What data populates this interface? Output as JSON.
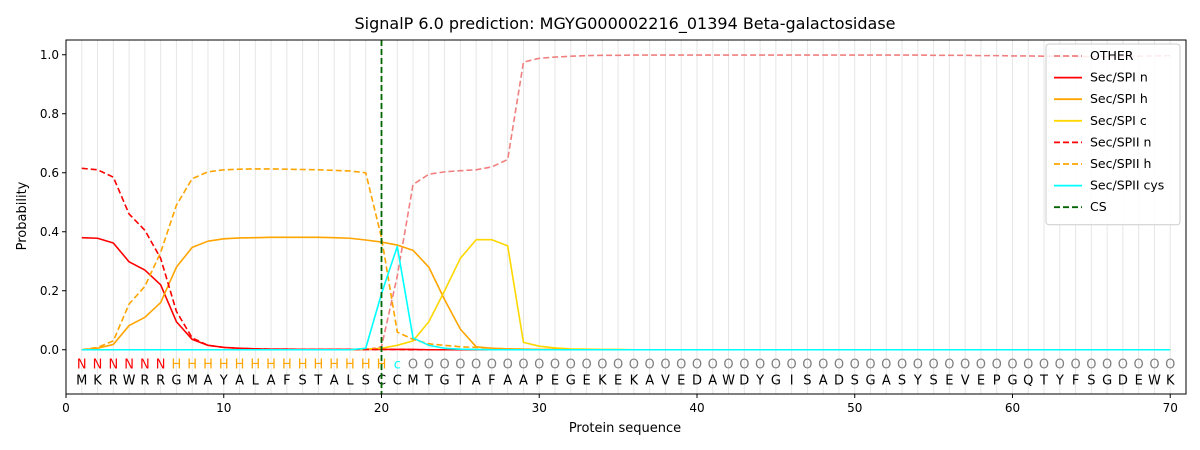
{
  "chart_data": {
    "type": "line",
    "title": "SignalP 6.0 prediction: MGYG000002216_01394 Beta-galactosidase",
    "xlabel": "Protein sequence",
    "ylabel": "Probability",
    "xlim": [
      0,
      71
    ],
    "ylim": [
      -0.15,
      1.05
    ],
    "x_ticks": [
      0,
      10,
      20,
      30,
      40,
      50,
      60,
      70
    ],
    "y_ticks": [
      0.0,
      0.2,
      0.4,
      0.6,
      0.8,
      1.0
    ],
    "x_tick_labels": [
      "0",
      "10",
      "20",
      "30",
      "40",
      "50",
      "60",
      "70"
    ],
    "y_tick_labels": [
      "0.0",
      "0.2",
      "0.4",
      "0.6",
      "0.8",
      "1.0"
    ],
    "grid": "vertical lines at each residue",
    "legend_position": "top-right",
    "sequence": "MKRWRRGMAYALAFSTALSCCMTGTAFAAPEGEKEKAVEDAWDYGISADSGASYSEVEPGQTYFSGDEWK",
    "region_labels": "NNNNNNHHHHHHHHHHHHHHcOOOOOOOOOOOOOOOOOOOOOOOOOOOOOOOOOOOOOOOOOOOOOOOOOO",
    "region_colors": {
      "N": "#ff0000",
      "H": "#ffa500",
      "c": "#00ffff",
      "O": "#808080"
    },
    "series": [
      {
        "name": "OTHER",
        "color": "#f08080",
        "dash": true,
        "values": [
          0.0,
          0.0,
          0.0,
          0.0,
          0.0,
          0.0,
          0.0,
          0.0,
          0.0,
          0.0,
          0.0,
          0.0,
          0.0,
          0.0,
          0.0,
          0.0,
          0.0,
          0.0,
          0.0,
          0.01,
          0.25,
          0.56,
          0.595,
          0.603,
          0.607,
          0.61,
          0.62,
          0.645,
          0.975,
          0.988,
          0.992,
          0.995,
          0.997,
          0.998,
          0.998,
          0.999,
          0.999,
          0.999,
          0.999,
          0.999,
          0.999,
          0.999,
          0.999,
          0.999,
          0.999,
          0.999,
          0.999,
          0.999,
          0.999,
          0.999,
          0.999,
          0.999,
          0.999,
          0.999,
          0.998,
          0.998,
          0.998,
          0.997,
          0.997,
          0.996,
          0.996,
          0.995,
          0.995,
          0.994,
          0.994,
          0.994,
          0.995,
          0.995,
          0.996,
          0.997
        ]
      },
      {
        "name": "Sec/SPI n",
        "color": "#ff0000",
        "dash": false,
        "values": [
          0.38,
          0.378,
          0.362,
          0.298,
          0.27,
          0.22,
          0.095,
          0.035,
          0.015,
          0.008,
          0.005,
          0.003,
          0.002,
          0.002,
          0.001,
          0.001,
          0.001,
          0.001,
          0.001,
          0.001,
          0.001,
          0.001,
          0.0,
          0.0,
          0.0,
          0.0,
          0.0,
          0.0,
          0.0,
          0.0,
          0.0,
          0.0,
          0.0,
          0.0,
          0.0,
          0.0,
          0.0,
          0.0,
          0.0,
          0.0,
          0.0,
          0.0,
          0.0,
          0.0,
          0.0,
          0.0,
          0.0,
          0.0,
          0.0,
          0.0,
          0.0,
          0.0,
          0.0,
          0.0,
          0.0,
          0.0,
          0.0,
          0.0,
          0.0,
          0.0,
          0.0,
          0.0,
          0.0,
          0.0,
          0.0,
          0.0,
          0.0,
          0.0,
          0.0,
          0.0
        ]
      },
      {
        "name": "Sec/SPI h",
        "color": "#ffa500",
        "dash": false,
        "values": [
          0.0,
          0.005,
          0.018,
          0.082,
          0.11,
          0.16,
          0.28,
          0.347,
          0.368,
          0.376,
          0.379,
          0.38,
          0.381,
          0.381,
          0.381,
          0.381,
          0.38,
          0.378,
          0.372,
          0.365,
          0.355,
          0.337,
          0.28,
          0.17,
          0.07,
          0.01,
          0.005,
          0.003,
          0.002,
          0.001,
          0.001,
          0.0,
          0.0,
          0.0,
          0.0,
          0.0,
          0.0,
          0.0,
          0.0,
          0.0,
          0.0,
          0.0,
          0.0,
          0.0,
          0.0,
          0.0,
          0.0,
          0.0,
          0.0,
          0.0,
          0.0,
          0.0,
          0.0,
          0.0,
          0.0,
          0.0,
          0.0,
          0.0,
          0.0,
          0.0,
          0.0,
          0.0,
          0.0,
          0.0,
          0.0,
          0.0,
          0.0,
          0.0,
          0.0,
          0.0
        ]
      },
      {
        "name": "Sec/SPI c",
        "color": "#ffd700",
        "dash": false,
        "values": [
          0.0,
          0.0,
          0.0,
          0.0,
          0.0,
          0.0,
          0.0,
          0.0,
          0.0,
          0.0,
          0.0,
          0.0,
          0.0,
          0.0,
          0.0,
          0.0,
          0.0,
          0.0,
          0.002,
          0.005,
          0.015,
          0.03,
          0.095,
          0.2,
          0.31,
          0.373,
          0.373,
          0.352,
          0.025,
          0.012,
          0.006,
          0.003,
          0.002,
          0.001,
          0.001,
          0.0,
          0.0,
          0.0,
          0.0,
          0.0,
          0.0,
          0.0,
          0.0,
          0.0,
          0.0,
          0.0,
          0.0,
          0.0,
          0.0,
          0.0,
          0.0,
          0.0,
          0.0,
          0.0,
          0.0,
          0.0,
          0.0,
          0.0,
          0.0,
          0.0,
          0.0,
          0.0,
          0.0,
          0.0,
          0.0,
          0.0,
          0.0,
          0.0,
          0.0,
          0.0
        ]
      },
      {
        "name": "Sec/SPII n",
        "color": "#ff0000",
        "dash": true,
        "values": [
          0.615,
          0.61,
          0.585,
          0.46,
          0.405,
          0.31,
          0.13,
          0.04,
          0.015,
          0.008,
          0.005,
          0.003,
          0.002,
          0.002,
          0.001,
          0.001,
          0.001,
          0.001,
          0.001,
          0.001,
          0.001,
          0.0,
          0.0,
          0.0,
          0.0,
          0.0,
          0.0,
          0.0,
          0.0,
          0.0,
          0.0,
          0.0,
          0.0,
          0.0,
          0.0,
          0.0,
          0.0,
          0.0,
          0.0,
          0.0,
          0.0,
          0.0,
          0.0,
          0.0,
          0.0,
          0.0,
          0.0,
          0.0,
          0.0,
          0.0,
          0.0,
          0.0,
          0.0,
          0.0,
          0.0,
          0.0,
          0.0,
          0.0,
          0.0,
          0.0,
          0.0,
          0.0,
          0.0,
          0.0,
          0.0,
          0.0,
          0.0,
          0.0,
          0.0,
          0.0
        ]
      },
      {
        "name": "Sec/SPII h",
        "color": "#ffa500",
        "dash": true,
        "values": [
          0.0,
          0.008,
          0.03,
          0.155,
          0.215,
          0.33,
          0.49,
          0.58,
          0.603,
          0.61,
          0.612,
          0.613,
          0.613,
          0.612,
          0.611,
          0.61,
          0.608,
          0.606,
          0.6,
          0.38,
          0.06,
          0.035,
          0.02,
          0.015,
          0.01,
          0.008,
          0.005,
          0.003,
          0.002,
          0.001,
          0.001,
          0.0,
          0.0,
          0.0,
          0.0,
          0.0,
          0.0,
          0.0,
          0.0,
          0.0,
          0.0,
          0.0,
          0.0,
          0.0,
          0.0,
          0.0,
          0.0,
          0.0,
          0.0,
          0.0,
          0.0,
          0.0,
          0.0,
          0.0,
          0.0,
          0.0,
          0.0,
          0.0,
          0.0,
          0.0,
          0.0,
          0.0,
          0.0,
          0.0,
          0.0,
          0.0,
          0.0,
          0.0,
          0.0,
          0.0
        ]
      },
      {
        "name": "Sec/SPII cys",
        "color": "#00ffff",
        "dash": false,
        "values": [
          0.0,
          0.0,
          0.0,
          0.0,
          0.0,
          0.0,
          0.0,
          0.0,
          0.0,
          0.0,
          0.0,
          0.0,
          0.0,
          0.0,
          0.0,
          0.0,
          0.0,
          0.0,
          0.005,
          0.19,
          0.35,
          0.04,
          0.015,
          0.005,
          0.002,
          0.001,
          0.0,
          0.0,
          0.0,
          0.0,
          0.0,
          0.0,
          0.0,
          0.0,
          0.0,
          0.0,
          0.0,
          0.0,
          0.0,
          0.0,
          0.0,
          0.0,
          0.0,
          0.0,
          0.0,
          0.0,
          0.0,
          0.0,
          0.0,
          0.0,
          0.0,
          0.0,
          0.0,
          0.0,
          0.0,
          0.0,
          0.0,
          0.0,
          0.0,
          0.0,
          0.0,
          0.0,
          0.0,
          0.0,
          0.0,
          0.0,
          0.0,
          0.0,
          0.0,
          0.0
        ]
      }
    ],
    "cs": {
      "name": "CS",
      "x": 20,
      "color": "#006400",
      "dash": true
    }
  }
}
